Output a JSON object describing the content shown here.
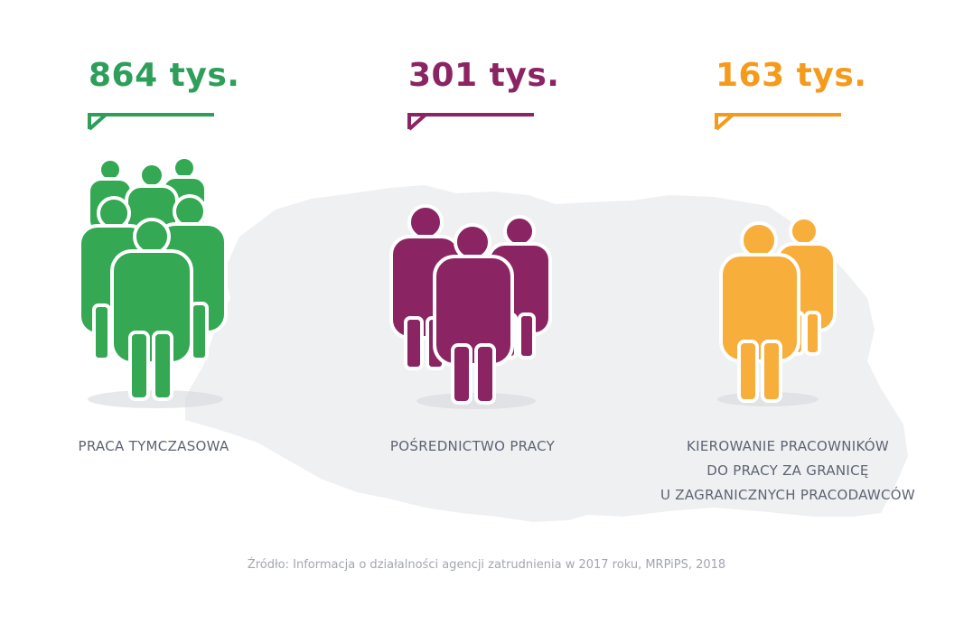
{
  "colors": {
    "green": "#2e9e5b",
    "green_figure": "#34a853",
    "purple": "#8b2462",
    "orange": "#f59a1b",
    "orange_figure": "#f7ae3a",
    "map": "#eef0f2",
    "label_text": "#5e6472"
  },
  "items": [
    {
      "value": "864 tys.",
      "label_lines": [
        "PRACA TYMCZASOWA"
      ],
      "color_key": "green",
      "figure_icon": "crowd-of-people-icon",
      "figure_count": 7
    },
    {
      "value": "301 tys.",
      "label_lines": [
        "POŚREDNICTWO PRACY"
      ],
      "color_key": "purple",
      "figure_icon": "group-of-people-icon",
      "figure_count": 3
    },
    {
      "value": "163 tys.",
      "label_lines": [
        "KIEROWANIE PRACOWNIKÓW",
        "DO PRACY ZA GRANICĘ",
        "U ZAGRANICZNYCH PRACODAWCÓW"
      ],
      "color_key": "orange",
      "figure_icon": "pair-of-people-icon",
      "figure_count": 2
    }
  ],
  "source": "Źródło: Informacja o działalności agencji zatrudnienia w 2017 roku, MRPiPS, 2018"
}
